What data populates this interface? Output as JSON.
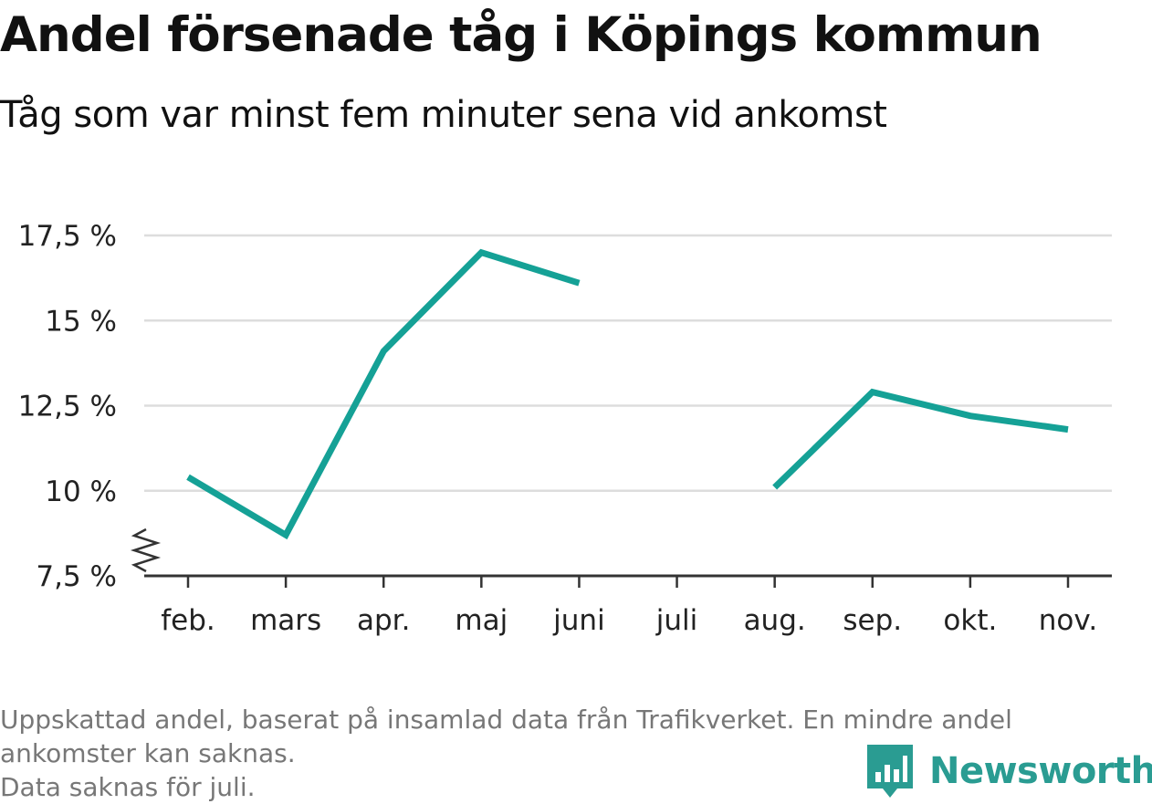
{
  "title": "Andel försenade tåg i Köpings kommun",
  "subtitle": "Tåg som var minst fem minuter sena vid ankomst",
  "footer": {
    "note_line1": "Uppskattad andel, baserat på insamlad data från Trafikverket. En mindre andel",
    "note_line2": "ankomster kan saknas.",
    "note_line3": "Data saknas för juli."
  },
  "brand": {
    "name": "Newsworthy",
    "icon": "bar-chart-speech-bubble-icon"
  },
  "colors": {
    "line": "#15a196",
    "grid": "#dddddd",
    "axis": "#333333",
    "brand": "#2a9c92",
    "note": "#777777"
  },
  "chart_data": {
    "type": "line",
    "title": "Andel försenade tåg i Köpings kommun",
    "subtitle": "Tåg som var minst fem minuter sena vid ankomst",
    "categories": [
      "feb.",
      "mars",
      "apr.",
      "maj",
      "juni",
      "juli",
      "aug.",
      "sep.",
      "okt.",
      "nov."
    ],
    "series": [
      {
        "values": [
          10.4,
          8.7,
          14.1,
          17.0,
          16.1,
          null,
          10.1,
          12.9,
          12.2,
          11.8
        ]
      }
    ],
    "yticks": [
      7.5,
      10,
      12.5,
      15,
      17.5
    ],
    "ytick_labels": [
      "7,5 %",
      "10 %",
      "12,5 %",
      "15 %",
      "17,5 %"
    ],
    "ylim": [
      7.5,
      17.5
    ],
    "y_axis_broken": true,
    "grid": true,
    "legend": "none"
  }
}
